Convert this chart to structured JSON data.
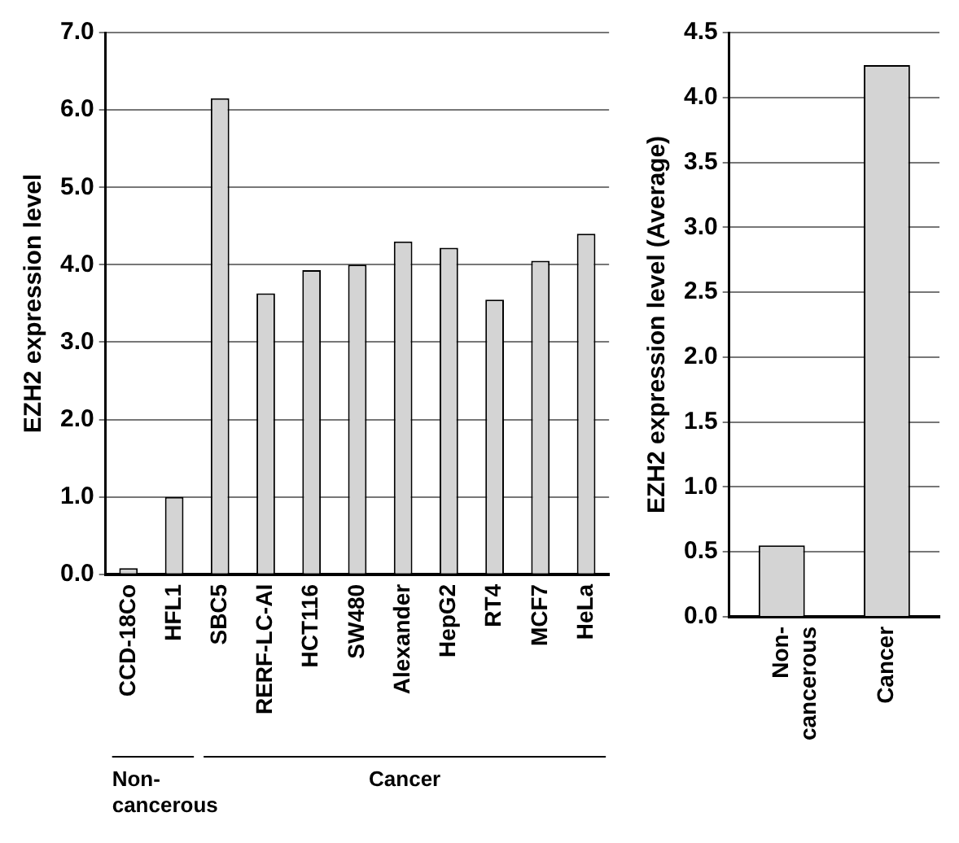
{
  "chart_data": [
    {
      "type": "bar",
      "ylabel": "EZH2 expression level",
      "categories": [
        "CCD-18Co",
        "HFL1",
        "SBC5",
        "RERF-LC-AI",
        "HCT116",
        "SW480",
        "Alexander",
        "HepG2",
        "RT4",
        "MCF7",
        "HeLa"
      ],
      "values": [
        0.08,
        1.0,
        6.15,
        3.63,
        3.93,
        4.0,
        4.3,
        4.22,
        3.55,
        4.05,
        4.4
      ],
      "color": "#d4d4d4",
      "ylim": [
        0,
        7
      ],
      "yticks": [
        {
          "value": 0,
          "label": "0.0"
        },
        {
          "value": 1,
          "label": "1.0"
        },
        {
          "value": 2,
          "label": "2.0"
        },
        {
          "value": 3,
          "label": "3.0"
        },
        {
          "value": 4,
          "label": "4.0"
        },
        {
          "value": 5,
          "label": "5.0"
        },
        {
          "value": 6,
          "label": "6.0"
        },
        {
          "value": 7,
          "label": "7.0"
        }
      ],
      "grid": "y",
      "annotations": [
        "Non-cancerous",
        "Cancer"
      ]
    },
    {
      "type": "bar",
      "ylabel": "EZH2 expression level (Average)",
      "categories": [
        "Non-cancerous",
        "Cancer"
      ],
      "values": [
        0.55,
        4.25
      ],
      "color": "#d4d4d4",
      "ylim": [
        0,
        4.5
      ],
      "yticks": [
        {
          "value": 0,
          "label": "0.0"
        },
        {
          "value": 0.5,
          "label": "0.5"
        },
        {
          "value": 1,
          "label": "1.0"
        },
        {
          "value": 1.5,
          "label": "1.5"
        },
        {
          "value": 2,
          "label": "2.0"
        },
        {
          "value": 2.5,
          "label": "2.5"
        },
        {
          "value": 3,
          "label": "3.0"
        },
        {
          "value": 3.5,
          "label": "3.5"
        },
        {
          "value": 4,
          "label": "4.0"
        },
        {
          "value": 4.5,
          "label": "4.5"
        }
      ],
      "grid": "y"
    }
  ]
}
